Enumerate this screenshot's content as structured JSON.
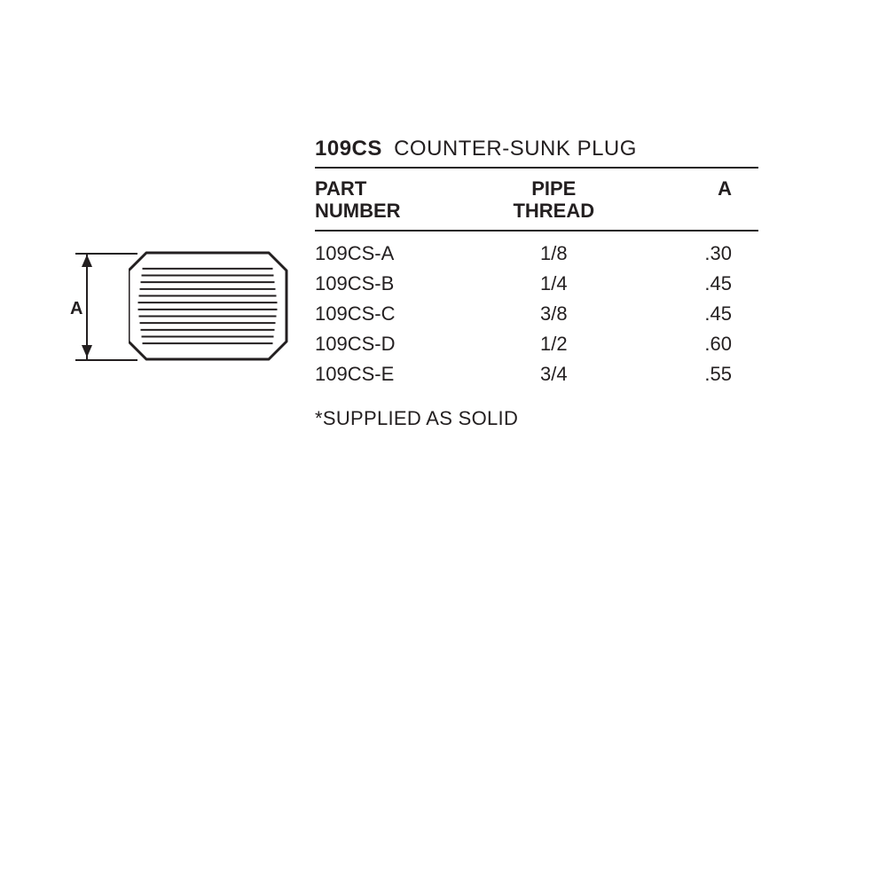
{
  "colors": {
    "ink": "#231f20",
    "bg": "#ffffff"
  },
  "diagram": {
    "dimension_label": "A",
    "plug": {
      "outer_stroke": "#231f20",
      "outer_stroke_width": 3,
      "thread_stroke": "#231f20",
      "thread_stroke_width": 2,
      "thread_count": 12
    }
  },
  "table": {
    "title_code": "109CS",
    "title_name": "COUNTER-SUNK PLUG",
    "columns": {
      "part": "PART\nNUMBER",
      "pipe": "PIPE\nTHREAD",
      "a": "A"
    },
    "rows": [
      {
        "part": "109CS-A",
        "pipe": "1/8",
        "a": ".30"
      },
      {
        "part": "109CS-B",
        "pipe": "1/4",
        "a": ".45"
      },
      {
        "part": "109CS-C",
        "pipe": "3/8",
        "a": ".45"
      },
      {
        "part": "109CS-D",
        "pipe": "1/2",
        "a": ".60"
      },
      {
        "part": "109CS-E",
        "pipe": "3/4",
        "a": ".55"
      }
    ],
    "footnote": "*SUPPLIED AS SOLID"
  }
}
